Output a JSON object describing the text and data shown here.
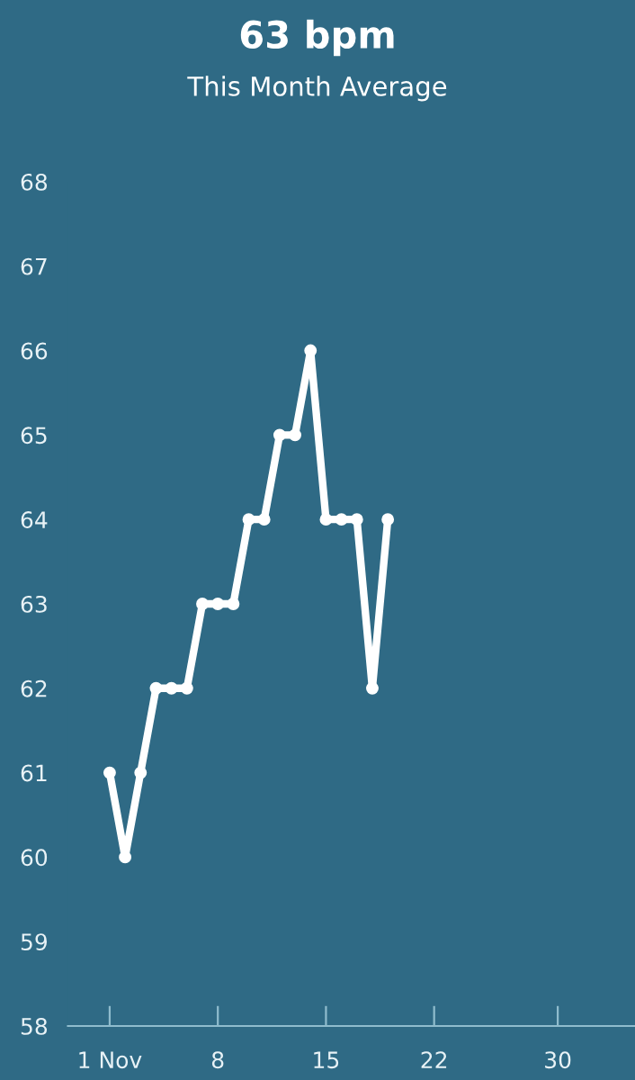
{
  "chart_data": {
    "type": "line",
    "title": "63 bpm",
    "subtitle": "This Month Average",
    "x": [
      1,
      2,
      3,
      4,
      5,
      6,
      7,
      8,
      9,
      10,
      11,
      12,
      13,
      14,
      15,
      16,
      17,
      18,
      19
    ],
    "series": [
      {
        "color": "#ffffff",
        "values": [
          61,
          60,
          61,
          62,
          62,
          62,
          63,
          63,
          63,
          64,
          64,
          65,
          65,
          66,
          64,
          64,
          64,
          62,
          64
        ]
      }
    ],
    "xlim": [
      -1.7,
      35
    ],
    "xticks": [
      {
        "value": 1,
        "label": "1 Nov"
      },
      8,
      15,
      22,
      30
    ],
    "ylim": [
      58,
      68
    ],
    "yticks": [
      58,
      59,
      60,
      61,
      62,
      63,
      64,
      65,
      66,
      67,
      68
    ],
    "grid": false,
    "marker": "circle",
    "line_style": "solid"
  }
}
